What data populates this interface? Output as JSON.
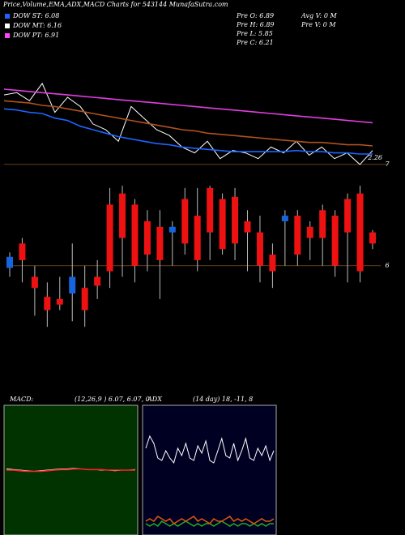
{
  "header": {
    "title": "Price,Volume,EMA,ADX,MACD Charts for 543144  MunafaSutra.com",
    "legend": [
      {
        "label": "DOW ST: 6.08",
        "color": "#1e64ff"
      },
      {
        "label": "DOW MT: 6.16",
        "color": "#ffffff"
      },
      {
        "label": "DOW PT: 6.91",
        "color": "#ff44ff"
      }
    ],
    "info": [
      "Pre  O: 6.89",
      "Pre  H: 6.89",
      "Pre  L: 5.85",
      "Pre  C: 6.21",
      "Avg V: 0  M",
      "Pre  V: 0  M"
    ]
  },
  "chart_data": [
    {
      "type": "line",
      "annotation": "2.26",
      "ylim": [
        6.95,
        8.0
      ],
      "yticks": [
        7
      ],
      "series": [
        {
          "name": null,
          "color": "#ffffff",
          "values": [
            7.6,
            7.62,
            7.55,
            7.7,
            7.45,
            7.58,
            7.5,
            7.35,
            7.3,
            7.2,
            7.5,
            7.4,
            7.3,
            7.25,
            7.15,
            7.1,
            7.2,
            7.05,
            7.12,
            7.1,
            7.05,
            7.15,
            7.1,
            7.2,
            7.08,
            7.15,
            7.05,
            7.1,
            7.0,
            7.12
          ]
        },
        {
          "name": null,
          "color": "#1e64ff",
          "values": [
            7.48,
            7.47,
            7.45,
            7.44,
            7.4,
            7.38,
            7.33,
            7.3,
            7.27,
            7.24,
            7.22,
            7.2,
            7.18,
            7.17,
            7.15,
            7.14,
            7.13,
            7.12,
            7.11,
            7.11,
            7.11,
            7.11,
            7.11,
            7.12,
            7.11,
            7.11,
            7.1,
            7.1,
            7.09,
            7.09
          ]
        },
        {
          "name": null,
          "color": "#e03ee0",
          "values": [
            7.65,
            7.64,
            7.63,
            7.62,
            7.61,
            7.6,
            7.59,
            7.58,
            7.57,
            7.56,
            7.55,
            7.54,
            7.53,
            7.52,
            7.51,
            7.5,
            7.49,
            7.48,
            7.47,
            7.46,
            7.45,
            7.44,
            7.43,
            7.42,
            7.41,
            7.4,
            7.39,
            7.38,
            7.37,
            7.36
          ]
        },
        {
          "name": null,
          "color": "#b0521e",
          "values": [
            7.55,
            7.54,
            7.53,
            7.51,
            7.5,
            7.48,
            7.46,
            7.44,
            7.42,
            7.4,
            7.38,
            7.36,
            7.34,
            7.32,
            7.3,
            7.29,
            7.27,
            7.26,
            7.25,
            7.24,
            7.23,
            7.22,
            7.21,
            7.2,
            7.19,
            7.19,
            7.18,
            7.17,
            7.17,
            7.16
          ]
        }
      ]
    },
    {
      "type": "candlestick",
      "ylim": [
        5.4,
        6.75
      ],
      "yticks": [
        6
      ],
      "up_color": "#1565e0",
      "down_color": "#ee1111",
      "open": [
        5.98,
        6.2,
        5.9,
        5.72,
        5.7,
        5.75,
        5.8,
        5.9,
        6.55,
        6.65,
        6.55,
        6.4,
        6.35,
        6.3,
        6.6,
        6.45,
        6.7,
        6.6,
        6.62,
        6.4,
        6.3,
        6.1,
        6.4,
        6.45,
        6.35,
        6.5,
        6.45,
        6.6,
        6.65,
        6.3
      ],
      "high": [
        6.12,
        6.25,
        6.0,
        5.85,
        5.9,
        6.2,
        6.0,
        6.05,
        6.7,
        6.72,
        6.6,
        6.5,
        6.5,
        6.4,
        6.7,
        6.7,
        6.72,
        6.65,
        6.7,
        6.5,
        6.45,
        6.2,
        6.5,
        6.5,
        6.4,
        6.55,
        6.5,
        6.65,
        6.72,
        6.32
      ],
      "low": [
        5.9,
        5.85,
        5.55,
        5.45,
        5.6,
        5.5,
        5.45,
        5.7,
        5.8,
        5.9,
        5.85,
        5.95,
        5.7,
        6.0,
        6.1,
        5.95,
        6.05,
        6.1,
        6.05,
        5.95,
        5.85,
        5.8,
        6.0,
        6.0,
        6.05,
        6.0,
        5.9,
        5.85,
        5.85,
        6.15
      ],
      "close": [
        6.08,
        6.05,
        5.8,
        5.6,
        5.65,
        5.9,
        5.6,
        5.82,
        5.95,
        6.25,
        6.0,
        6.1,
        6.05,
        6.35,
        6.2,
        6.05,
        6.3,
        6.15,
        6.2,
        6.3,
        6.0,
        5.95,
        6.45,
        6.1,
        6.25,
        6.25,
        6.0,
        6.3,
        5.95,
        6.2
      ]
    },
    {
      "type": "line",
      "label": "MACD:",
      "params": "(12,26,9 ) 6.07, 6.07, 0",
      "ylim": [
        -1,
        1
      ],
      "series": [
        {
          "name": null,
          "color": "#ffffff",
          "values": [
            0.02,
            0.01,
            0.0,
            -0.01,
            -0.02,
            -0.01,
            0.0,
            0.01,
            0.02,
            0.02,
            0.03,
            0.02,
            0.01,
            0.01,
            0.0,
            0.0,
            -0.01,
            0.0,
            0.0,
            0.01
          ]
        },
        {
          "name": null,
          "color": "#ff2222",
          "values": [
            0.0,
            0.0,
            -0.01,
            -0.02,
            -0.02,
            -0.02,
            -0.01,
            0.0,
            0.01,
            0.01,
            0.02,
            0.02,
            0.01,
            0.01,
            0.01,
            0.0,
            0.0,
            0.0,
            0.0,
            0.0
          ]
        }
      ]
    },
    {
      "type": "line",
      "label": "ADX",
      "params": "(14  day) 18, -11, 8",
      "ylim": [
        0,
        50
      ],
      "series": [
        {
          "name": null,
          "color": "#ffffff",
          "values": [
            34,
            39,
            36,
            30,
            29,
            33,
            30,
            28,
            34,
            31,
            36,
            30,
            29,
            35,
            32,
            37,
            29,
            28,
            33,
            38,
            31,
            30,
            36,
            29,
            33,
            38,
            30,
            29,
            34,
            31,
            35,
            29,
            33
          ]
        },
        {
          "name": null,
          "color": "#22aa22",
          "values": [
            3,
            2,
            3,
            2,
            4,
            3,
            2,
            3,
            2,
            3,
            4,
            3,
            2,
            3,
            2,
            3,
            3,
            2,
            3,
            4,
            3,
            2,
            3,
            2,
            3,
            3,
            2,
            3,
            2,
            3,
            2,
            3,
            3
          ]
        },
        {
          "name": null,
          "color": "#dd5511",
          "values": [
            4,
            5,
            4,
            6,
            5,
            4,
            5,
            3,
            4,
            5,
            4,
            5,
            6,
            4,
            5,
            4,
            3,
            5,
            4,
            4,
            5,
            6,
            4,
            5,
            4,
            5,
            4,
            3,
            4,
            5,
            4,
            4,
            5
          ]
        }
      ]
    }
  ]
}
